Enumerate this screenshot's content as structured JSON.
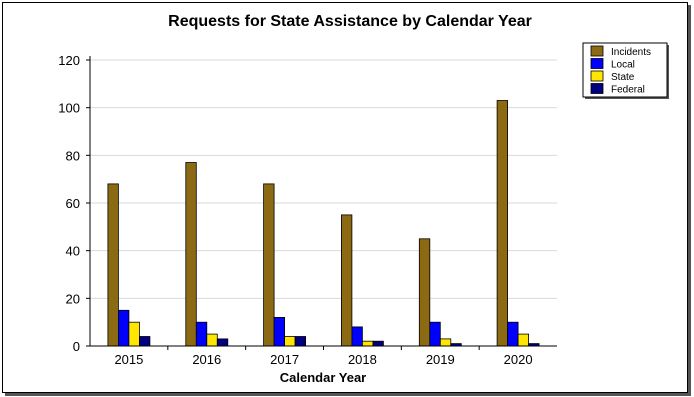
{
  "chart_data": {
    "type": "bar",
    "title": "Requests for State Assistance by Calendar Year",
    "xlabel": "Calendar Year",
    "ylabel": "",
    "categories": [
      "2015",
      "2016",
      "2017",
      "2018",
      "2019",
      "2020"
    ],
    "series": [
      {
        "name": "Incidents",
        "color": "#8c6a14",
        "values": [
          68,
          77,
          68,
          55,
          45,
          103
        ]
      },
      {
        "name": "Local",
        "color": "#0000ff",
        "values": [
          15,
          10,
          12,
          8,
          10,
          10
        ]
      },
      {
        "name": "State",
        "color": "#ffe600",
        "values": [
          10,
          5,
          4,
          2,
          3,
          5
        ]
      },
      {
        "name": "Federal",
        "color": "#000080",
        "values": [
          4,
          3,
          4,
          2,
          1,
          1
        ]
      }
    ],
    "ylim": [
      0,
      120
    ],
    "yticks": [
      0,
      20,
      40,
      60,
      80,
      100,
      120
    ],
    "grid": true,
    "legend_position": "top-right"
  }
}
